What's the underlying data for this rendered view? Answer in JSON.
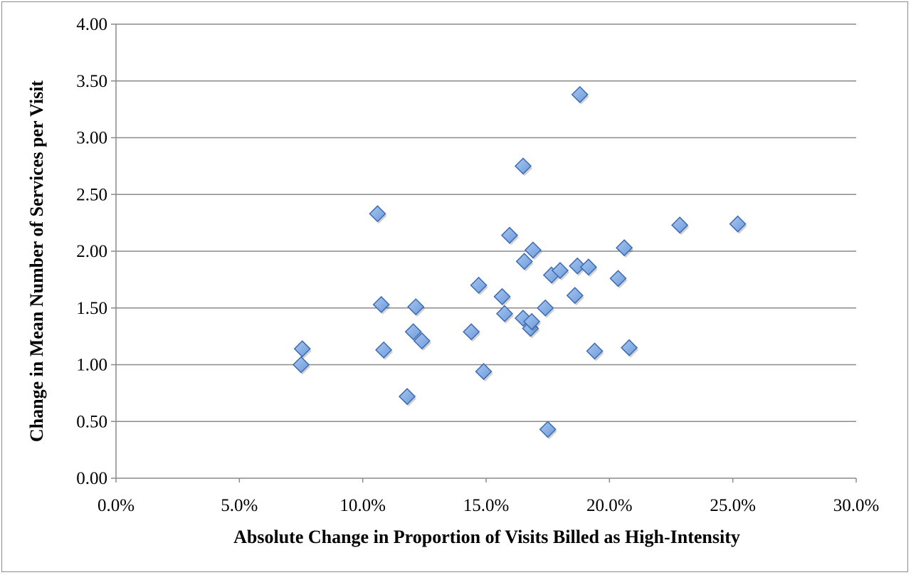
{
  "chart_data": {
    "type": "scatter",
    "title": "",
    "xlabel": "Absolute Change in Proportion of Visits Billed as High-Intensity",
    "ylabel": "Change in Mean Number of Services per Visit",
    "xlim": [
      0,
      0.3
    ],
    "ylim": [
      0,
      4.0
    ],
    "x_ticks": [
      0,
      0.05,
      0.1,
      0.15,
      0.2,
      0.25,
      0.3
    ],
    "x_tick_labels": [
      "0.0%",
      "5.0%",
      "10.0%",
      "15.0%",
      "20.0%",
      "25.0%",
      "30.0%"
    ],
    "y_ticks": [
      0,
      0.5,
      1.0,
      1.5,
      2.0,
      2.5,
      3.0,
      3.5,
      4.0
    ],
    "y_tick_labels": [
      "0.00",
      "0.50",
      "1.00",
      "1.50",
      "2.00",
      "2.50",
      "3.00",
      "3.50",
      "4.00"
    ],
    "grid": "horizontal",
    "marker": "diamond",
    "marker_color": "#6b9bdc",
    "marker_edge_color": "#3d6bb0",
    "series": [
      {
        "points": [
          [
            0.075,
            1.0
          ],
          [
            0.0755,
            1.14
          ],
          [
            0.106,
            2.33
          ],
          [
            0.1075,
            1.53
          ],
          [
            0.1085,
            1.13
          ],
          [
            0.118,
            0.72
          ],
          [
            0.1205,
            1.29
          ],
          [
            0.1215,
            1.51
          ],
          [
            0.124,
            1.21
          ],
          [
            0.144,
            1.29
          ],
          [
            0.147,
            1.7
          ],
          [
            0.149,
            0.94
          ],
          [
            0.1565,
            1.6
          ],
          [
            0.1575,
            1.45
          ],
          [
            0.1595,
            2.14
          ],
          [
            0.165,
            2.75
          ],
          [
            0.165,
            1.41
          ],
          [
            0.1655,
            1.91
          ],
          [
            0.168,
            1.32
          ],
          [
            0.1685,
            1.38
          ],
          [
            0.169,
            2.01
          ],
          [
            0.174,
            1.5
          ],
          [
            0.175,
            0.43
          ],
          [
            0.1765,
            1.79
          ],
          [
            0.18,
            1.83
          ],
          [
            0.186,
            1.61
          ],
          [
            0.187,
            1.87
          ],
          [
            0.188,
            3.38
          ],
          [
            0.1915,
            1.86
          ],
          [
            0.194,
            1.12
          ],
          [
            0.2035,
            1.76
          ],
          [
            0.206,
            2.03
          ],
          [
            0.208,
            1.15
          ],
          [
            0.2285,
            2.23
          ],
          [
            0.252,
            2.24
          ]
        ]
      }
    ]
  }
}
